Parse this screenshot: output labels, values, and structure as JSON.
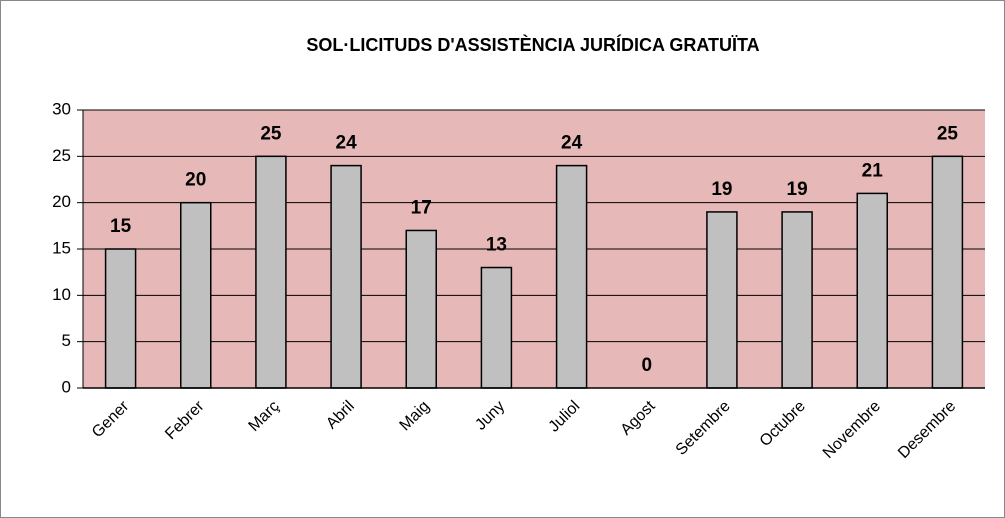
{
  "chart_data": {
    "type": "bar",
    "title": "SOL·LICITUDS D'ASSISTÈNCIA JURÍDICA GRATUÏTA",
    "categories": [
      "Gener",
      "Febrer",
      "Març",
      "Abril",
      "Maig",
      "Juny",
      "Juliol",
      "Agost",
      "Setembre",
      "Octubre",
      "Novembre",
      "Desembre"
    ],
    "values": [
      15,
      20,
      25,
      24,
      17,
      13,
      24,
      0,
      19,
      19,
      21,
      25
    ],
    "color": "#c0c0c0",
    "plot_background": "#e6b9b8",
    "ylim": [
      0,
      30
    ],
    "yticks": [
      0,
      5,
      10,
      15,
      20,
      25,
      30
    ],
    "grid": true
  }
}
